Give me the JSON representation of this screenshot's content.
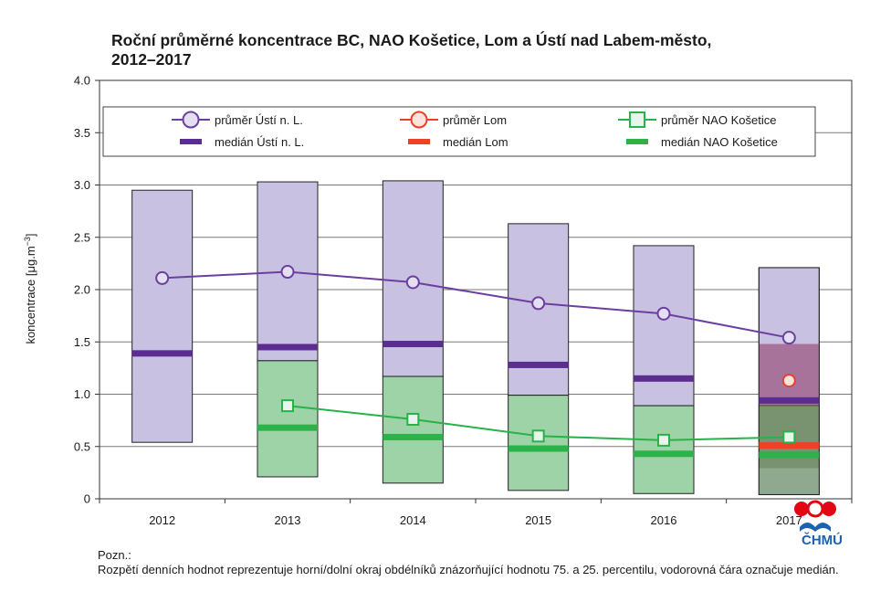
{
  "title_line1": "Roční průměrné koncentrace BC, NAO Košetice, Lom a Ústí nad Labem-město,",
  "title_line2": "2012–2017",
  "ylabel": "koncentrace [μg.m",
  "ylabel_sup": "−3",
  "ylabel_close": "]",
  "note_title": "Pozn.:",
  "note_text": "Rozpětí denních hodnot reprezentuje horní/dolní okraj obdélníků znázorňující hodnotu 75. a 25. percentilu, vodorovná čára označuje medián.",
  "logo_text": "ČHMÚ",
  "colors": {
    "usti_line": "#6b3fa0",
    "usti_box": "#c9c1e2",
    "usti_median": "#5b2d91",
    "lom_marker": "#e8402a",
    "lom_box": "#a7739b",
    "lom_median": "#ef4123",
    "kos_line": "#27b24a",
    "kos_box_a": "#7bbfad",
    "kos_box_b": "#9dd3a7",
    "kos_median": "#2bb34a",
    "kos_marker_fill": "#e8f5ea",
    "logo_red": "#e30613",
    "logo_blue": "#1b63b0"
  },
  "chart_data": {
    "type": "box-line",
    "title": "Roční průměrné koncentrace BC, NAO Košetice, Lom a Ústí nad Labem-město, 2012–2017",
    "xlabel": "",
    "ylabel": "koncentrace [μg.m−3]",
    "ylim": [
      0,
      4.0
    ],
    "yticks": [
      "0",
      "0.5",
      "1.0",
      "1.5",
      "2.0",
      "2.5",
      "3.0",
      "3.5",
      "4.0"
    ],
    "categories": [
      "2012",
      "2013",
      "2014",
      "2015",
      "2016",
      "2017"
    ],
    "grid": true,
    "legend_position": "top",
    "legend": [
      {
        "label": "průměr  Ústí n. L.",
        "kind": "line-marker",
        "series": "usti"
      },
      {
        "label": "průměr  Lom",
        "kind": "line-marker",
        "series": "lom"
      },
      {
        "label": "průměr  NAO Košetice",
        "kind": "line-marker",
        "series": "kos"
      },
      {
        "label": "medián Ústí n. L.",
        "kind": "median",
        "series": "usti"
      },
      {
        "label": "medián Lom",
        "kind": "median",
        "series": "lom"
      },
      {
        "label": "medián NAO  Košetice",
        "kind": "median",
        "series": "kos"
      }
    ],
    "series": [
      {
        "id": "usti",
        "name": "Ústí n. L.",
        "mean": [
          2.11,
          2.17,
          2.07,
          1.87,
          1.77,
          1.54
        ],
        "median": [
          1.39,
          1.45,
          1.48,
          1.28,
          1.15,
          0.94
        ],
        "p25": [
          0.54,
          1.32,
          1.17,
          0.99,
          0.89,
          0.89
        ],
        "p75": [
          2.95,
          3.03,
          3.04,
          2.63,
          2.42,
          2.21
        ]
      },
      {
        "id": "lom",
        "name": "Lom",
        "mean": [
          null,
          null,
          null,
          null,
          null,
          1.13
        ],
        "median": [
          null,
          null,
          null,
          null,
          null,
          0.51
        ],
        "p25": [
          null,
          null,
          null,
          null,
          null,
          0.29
        ],
        "p75": [
          null,
          null,
          null,
          null,
          null,
          1.48
        ]
      },
      {
        "id": "kos",
        "name": "NAO Košetice",
        "mean": [
          null,
          0.89,
          0.76,
          0.6,
          0.56,
          0.59
        ],
        "median": [
          null,
          0.68,
          0.59,
          0.48,
          0.43,
          0.42
        ],
        "p25": [
          null,
          0.21,
          0.15,
          0.08,
          0.05,
          0.04
        ],
        "p75": [
          null,
          1.32,
          1.17,
          0.99,
          0.89,
          0.89
        ]
      }
    ]
  }
}
